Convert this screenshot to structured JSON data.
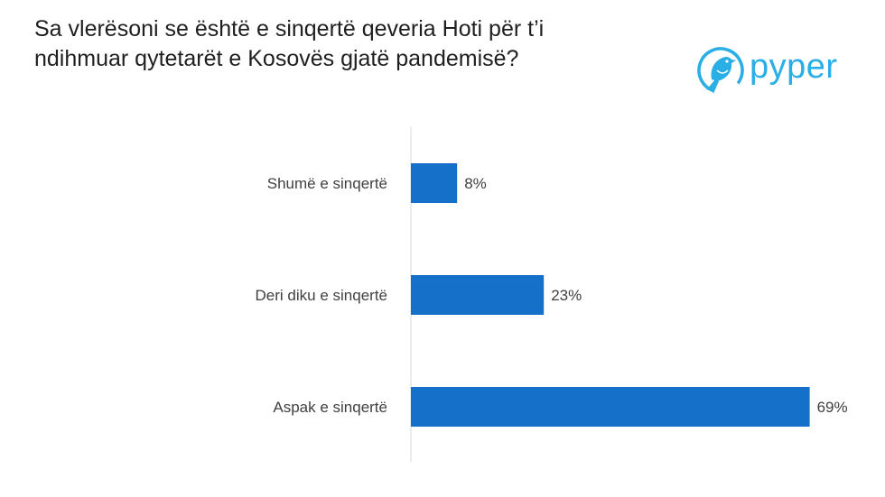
{
  "title": {
    "line1": "Sa vlerësoni se është e sinqertë qeveria Hoti për t’i",
    "line2": "ndihmuar qytetarët e Kosovës gjatë pandemisë?"
  },
  "logo": {
    "word": "pyper",
    "color": "#2aaee6",
    "icon": "bird-logo-icon"
  },
  "chart_data": {
    "type": "bar",
    "orientation": "horizontal",
    "categories": [
      "Shumë e sinqertë",
      "Deri diku e sinqertë",
      "Aspak e sinqertë"
    ],
    "values": [
      8,
      23,
      69
    ],
    "value_labels": [
      "8%",
      "23%",
      "69%"
    ],
    "bar_color": "#1470c8",
    "xlim": [
      0,
      70
    ],
    "grid": false,
    "legend": "none"
  }
}
